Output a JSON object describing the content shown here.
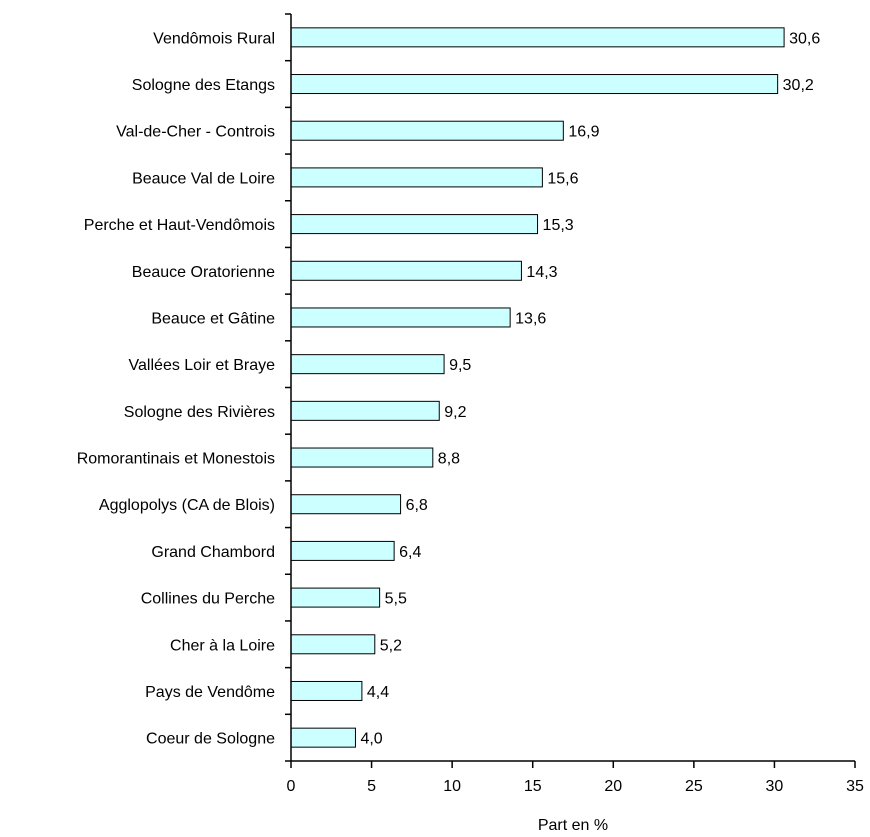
{
  "chart_data": {
    "type": "bar",
    "orientation": "horizontal",
    "categories": [
      "Vendômois Rural",
      "Sologne des Etangs",
      "Val-de-Cher - Controis",
      "Beauce Val de Loire",
      "Perche et Haut-Vendômois",
      "Beauce Oratorienne",
      "Beauce et Gâtine",
      "Vallées Loir et Braye",
      "Sologne des Rivières",
      "Romorantinais et Monestois",
      "Agglopolys (CA de Blois)",
      "Grand Chambord",
      "Collines du Perche",
      "Cher à la Loire",
      "Pays de Vendôme",
      "Coeur de Sologne"
    ],
    "values": [
      30.6,
      30.2,
      16.9,
      15.6,
      15.3,
      14.3,
      13.6,
      9.5,
      9.2,
      8.8,
      6.8,
      6.4,
      5.5,
      5.2,
      4.4,
      4.0
    ],
    "value_labels": [
      "30,6",
      "30,2",
      "16,9",
      "15,6",
      "15,3",
      "14,3",
      "13,6",
      "9,5",
      "9,2",
      "8,8",
      "6,8",
      "6,4",
      "5,5",
      "5,2",
      "4,4",
      "4,0"
    ],
    "title": "",
    "xlabel": "Part en %",
    "ylabel": "",
    "xlim": [
      0,
      35
    ],
    "xticks": [
      0,
      5,
      10,
      15,
      20,
      25,
      30,
      35
    ],
    "grid": false,
    "legend": "none",
    "bar_color": "#ccffff",
    "bar_edge_color": "#000000"
  }
}
